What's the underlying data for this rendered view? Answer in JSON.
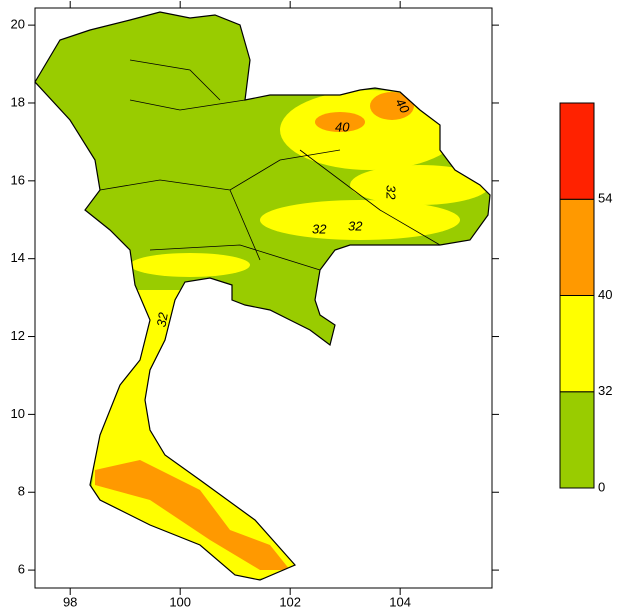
{
  "map": {
    "xlim": [
      97.36,
      105.67
    ],
    "ylim": [
      5.54,
      20.44
    ],
    "xticks": [
      98,
      100,
      102,
      104
    ],
    "yticks": [
      6,
      8,
      10,
      12,
      14,
      16,
      18,
      20
    ]
  },
  "colorbar": {
    "levels": [
      0,
      32,
      40,
      54
    ],
    "colors": [
      "#99cc00",
      "#ffff00",
      "#ff9900",
      "#ff2200"
    ]
  },
  "contour_labels": [
    "40",
    "40",
    "32",
    "32",
    "32",
    "32"
  ]
}
